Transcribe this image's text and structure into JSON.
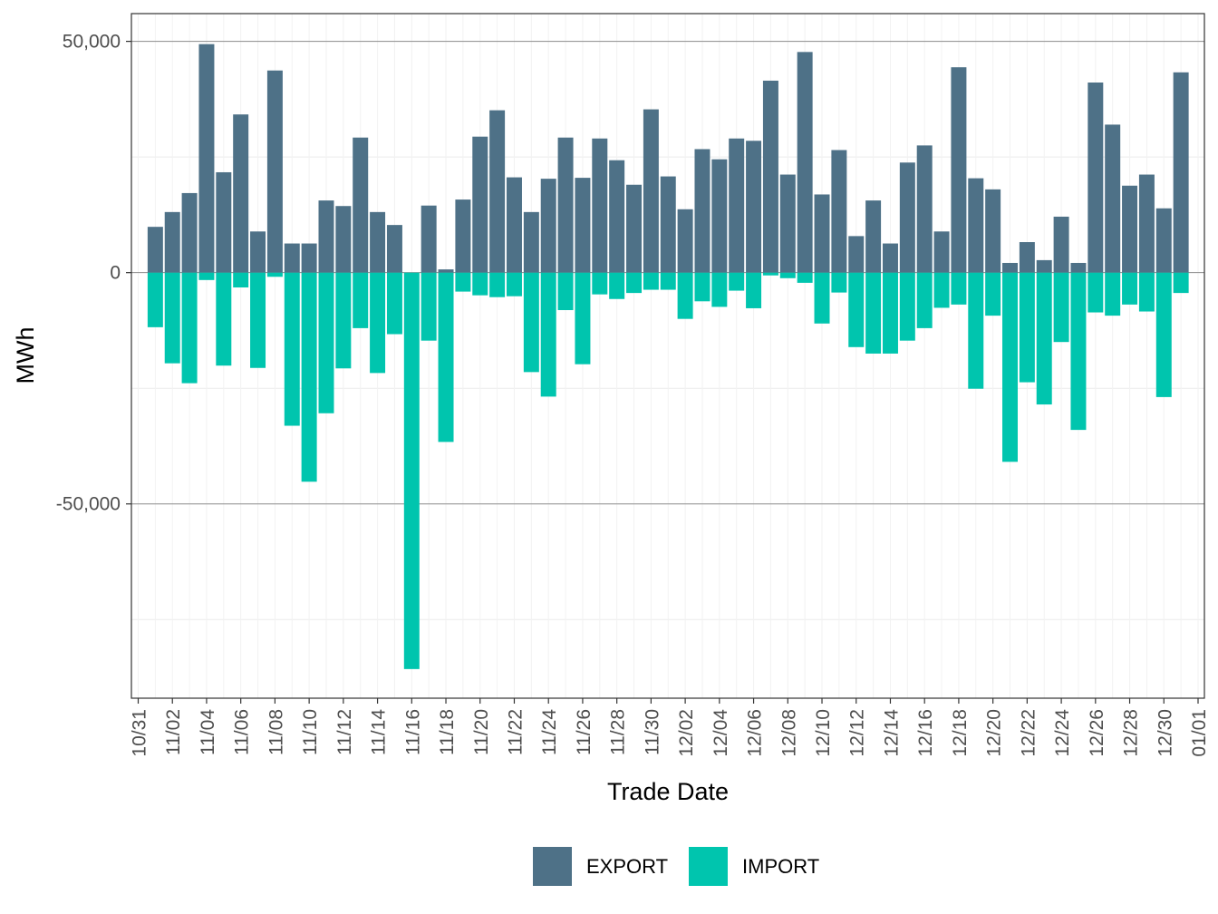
{
  "chart_data": {
    "type": "bar",
    "stacked": "diverging",
    "title": "",
    "xlabel": "Trade Date",
    "ylabel": "MWh",
    "ylim": [
      -92000,
      56000
    ],
    "y_ticks": [
      50000,
      0,
      -50000
    ],
    "y_tick_labels": [
      "50,000",
      "0",
      "-50,000"
    ],
    "x_tick_labels": [
      "10/31",
      "11/02",
      "11/04",
      "11/06",
      "11/08",
      "11/10",
      "11/12",
      "11/14",
      "11/16",
      "11/18",
      "11/20",
      "11/22",
      "11/24",
      "11/26",
      "11/28",
      "11/30",
      "12/02",
      "12/04",
      "12/06",
      "12/08",
      "12/10",
      "12/12",
      "12/14",
      "12/16",
      "12/18",
      "12/20",
      "12/22",
      "12/24",
      "12/26",
      "12/28",
      "12/30",
      "01/01"
    ],
    "grid": true,
    "legend_position": "bottom",
    "categories": [
      "11/01",
      "11/02",
      "11/03",
      "11/04",
      "11/05",
      "11/06",
      "11/07",
      "11/08",
      "11/09",
      "11/10",
      "11/11",
      "11/12",
      "11/13",
      "11/14",
      "11/15",
      "11/16",
      "11/17",
      "11/18",
      "11/19",
      "11/20",
      "11/21",
      "11/22",
      "11/23",
      "11/24",
      "11/25",
      "11/26",
      "11/27",
      "11/28",
      "11/29",
      "11/30",
      "12/01",
      "12/02",
      "12/03",
      "12/04",
      "12/05",
      "12/06",
      "12/07",
      "12/08",
      "12/09",
      "12/10",
      "12/11",
      "12/12",
      "12/13",
      "12/14",
      "12/15",
      "12/16",
      "12/17",
      "12/18",
      "12/19",
      "12/20",
      "12/21",
      "12/22",
      "12/23",
      "12/24",
      "12/25",
      "12/26",
      "12/27",
      "12/28",
      "12/29",
      "12/30",
      "12/31"
    ],
    "series": [
      {
        "name": "EXPORT",
        "color": "#4e7187",
        "values": [
          9900,
          13100,
          17200,
          49400,
          21700,
          34200,
          8900,
          43700,
          6300,
          6300,
          15600,
          14400,
          29200,
          13100,
          10300,
          0,
          14500,
          700,
          15800,
          29400,
          35100,
          20600,
          13100,
          20300,
          29200,
          20500,
          29000,
          24300,
          19000,
          35300,
          20800,
          13700,
          26700,
          24500,
          29000,
          28500,
          41500,
          21200,
          47700,
          16900,
          26500,
          7900,
          15600,
          6300,
          23800,
          27500,
          8900,
          44400,
          20400,
          18000,
          2100,
          6600,
          2700,
          12100,
          2100,
          41100,
          32000,
          18800,
          21200,
          13900,
          43300
        ]
      },
      {
        "name": "IMPORT",
        "color": "#00c5ae",
        "values": [
          -11800,
          -19600,
          -23900,
          -1600,
          -20100,
          -3200,
          -20600,
          -900,
          -33100,
          -45200,
          -30400,
          -20700,
          -12000,
          -21700,
          -13300,
          -85700,
          -14700,
          -36600,
          -4100,
          -4900,
          -5300,
          -5100,
          -21500,
          -26800,
          -8100,
          -19800,
          -4700,
          -5700,
          -4400,
          -3700,
          -3700,
          -10000,
          -6200,
          -7400,
          -3900,
          -7700,
          -600,
          -1200,
          -2200,
          -11000,
          -4300,
          -16100,
          -17500,
          -17500,
          -14700,
          -12000,
          -7600,
          -6900,
          -25100,
          -9300,
          -40900,
          -23700,
          -28500,
          -15000,
          -34000,
          -8600,
          -9300,
          -6900,
          -8400,
          -26900,
          -4400
        ]
      }
    ]
  }
}
